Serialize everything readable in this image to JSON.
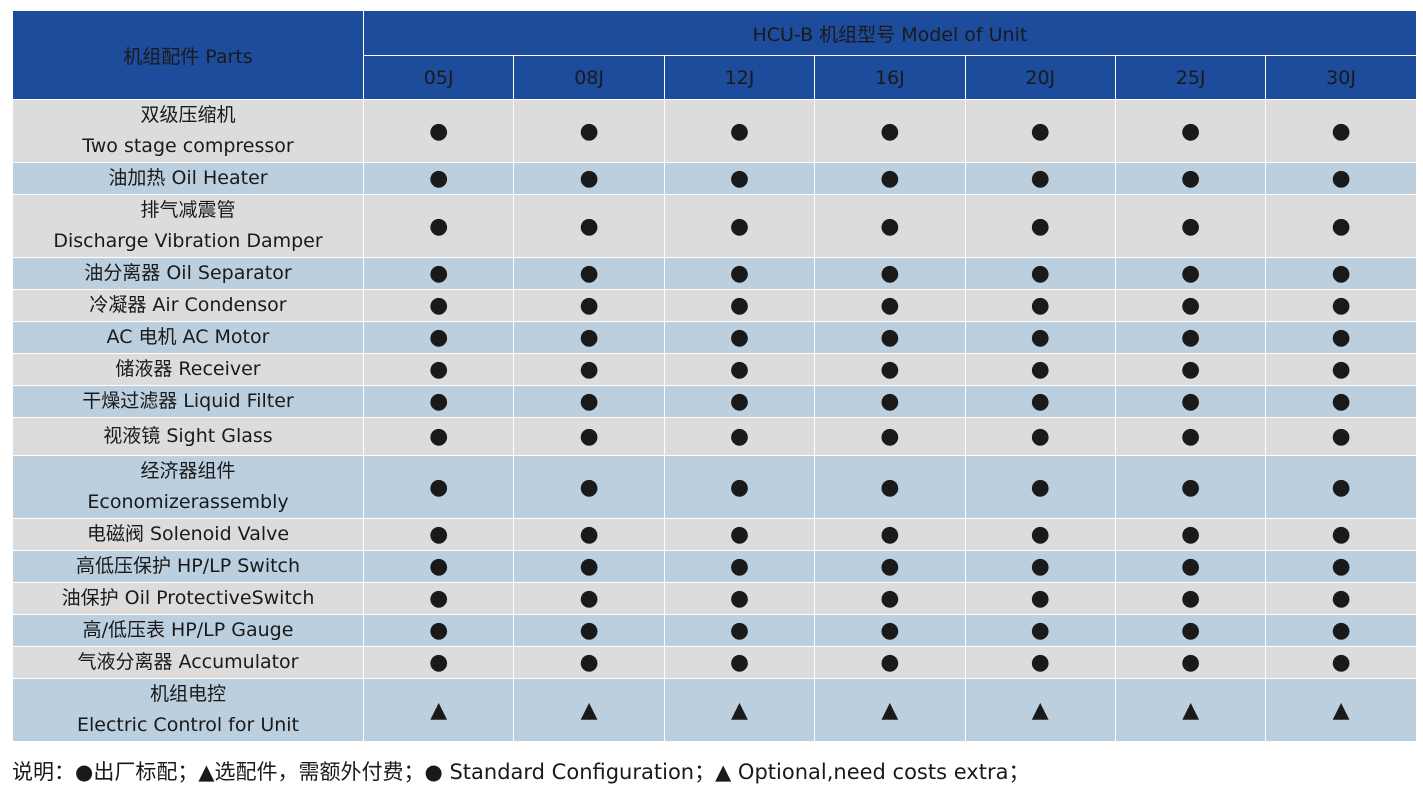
{
  "header": {
    "parts_label": "机组配件 Parts",
    "model_group_label": "HCU-B 机组型号 Model of Unit",
    "models": [
      "05J",
      "08J",
      "12J",
      "16J",
      "20J",
      "25J",
      "30J"
    ]
  },
  "rows": [
    {
      "zh": "双级压缩机",
      "en": "Two stage compressor",
      "marks": [
        "●",
        "●",
        "●",
        "●",
        "●",
        "●",
        "●"
      ]
    },
    {
      "zh": "油加热 Oil Heater",
      "en": "",
      "marks": [
        "●",
        "●",
        "●",
        "●",
        "●",
        "●",
        "●"
      ]
    },
    {
      "zh": "排气减震管",
      "en": "Discharge Vibration Damper",
      "marks": [
        "●",
        "●",
        "●",
        "●",
        "●",
        "●",
        "●"
      ]
    },
    {
      "zh": "油分离器 Oil Separator",
      "en": "",
      "marks": [
        "●",
        "●",
        "●",
        "●",
        "●",
        "●",
        "●"
      ]
    },
    {
      "zh": "冷凝器 Air Condensor",
      "en": "",
      "marks": [
        "●",
        "●",
        "●",
        "●",
        "●",
        "●",
        "●"
      ]
    },
    {
      "zh": "AC 电机 AC Motor",
      "en": "",
      "marks": [
        "●",
        "●",
        "●",
        "●",
        "●",
        "●",
        "●"
      ]
    },
    {
      "zh": "储液器 Receiver",
      "en": "",
      "marks": [
        "●",
        "●",
        "●",
        "●",
        "●",
        "●",
        "●"
      ]
    },
    {
      "zh": "干燥过滤器  Liquid Filter",
      "en": "",
      "marks": [
        "●",
        "●",
        "●",
        "●",
        "●",
        "●",
        "●"
      ]
    },
    {
      "zh": "视液镜 Sight Glass",
      "en": "",
      "marks": [
        "●",
        "●",
        "●",
        "●",
        "●",
        "●",
        "●"
      ]
    },
    {
      "zh": "经济器组件",
      "en": "Economizerassembly",
      "marks": [
        "●",
        "●",
        "●",
        "●",
        "●",
        "●",
        "●"
      ]
    },
    {
      "zh": "电磁阀 Solenoid Valve",
      "en": "",
      "marks": [
        "●",
        "●",
        "●",
        "●",
        "●",
        "●",
        "●"
      ]
    },
    {
      "zh": "高低压保护 HP/LP Switch",
      "en": "",
      "marks": [
        "●",
        "●",
        "●",
        "●",
        "●",
        "●",
        "●"
      ]
    },
    {
      "zh": "油保护 Oil ProtectiveSwitch",
      "en": "",
      "marks": [
        "●",
        "●",
        "●",
        "●",
        "●",
        "●",
        "●"
      ]
    },
    {
      "zh": "高/低压表 HP/LP Gauge",
      "en": "",
      "marks": [
        "●",
        "●",
        "●",
        "●",
        "●",
        "●",
        "●"
      ]
    },
    {
      "zh": "气液分离器 Accumulator",
      "en": "",
      "marks": [
        "●",
        "●",
        "●",
        "●",
        "●",
        "●",
        "●"
      ]
    },
    {
      "zh": "机组电控",
      "en": "Electric Control for Unit",
      "marks": [
        "▲",
        "▲",
        "▲",
        "▲",
        "▲",
        "▲",
        "▲"
      ]
    }
  ],
  "note": "说明：●出厂标配；▲选配件，需额外付费；● Standard Configuration；▲ Optional,need costs extra；",
  "colors": {
    "header_bg": "#1d4c9c",
    "row_gray": "#dcdcdc",
    "row_blue": "#bccfdf"
  }
}
